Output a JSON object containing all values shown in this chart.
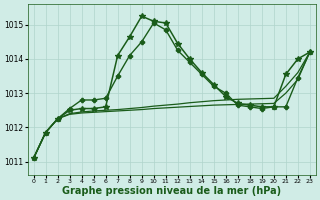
{
  "bg_color": "#d0ece6",
  "line_color": "#1a5c1a",
  "grid_color": "#b0d4cc",
  "xlabel": "Graphe pression niveau de la mer (hPa)",
  "xlabel_fontsize": 7,
  "ylabel_values": [
    1011,
    1012,
    1013,
    1014,
    1015
  ],
  "xlim": [
    -0.5,
    23.5
  ],
  "ylim": [
    1010.6,
    1015.6
  ],
  "xticks": [
    0,
    1,
    2,
    3,
    4,
    5,
    6,
    7,
    8,
    9,
    10,
    11,
    12,
    13,
    14,
    15,
    16,
    17,
    18,
    19,
    20,
    21,
    22,
    23
  ],
  "series": [
    {
      "x": [
        0,
        1,
        2,
        3,
        4,
        5,
        6,
        7,
        8,
        9,
        10,
        11,
        12,
        13,
        14,
        15,
        16,
        17,
        18,
        19,
        20,
        21,
        22,
        23
      ],
      "y": [
        1011.1,
        1011.85,
        1012.25,
        1012.5,
        1012.55,
        1012.55,
        1012.6,
        1014.1,
        1014.65,
        1015.25,
        1015.1,
        1015.05,
        1014.45,
        1014.0,
        1013.6,
        1013.25,
        1012.9,
        1012.7,
        1012.65,
        1012.6,
        1012.6,
        1013.55,
        1014.0,
        1014.2
      ],
      "marker": "*",
      "markersize": 4,
      "linewidth": 1.1,
      "linestyle": "-"
    },
    {
      "x": [
        0,
        1,
        2,
        3,
        4,
        5,
        6,
        7,
        8,
        9,
        10,
        11,
        12,
        13,
        14,
        15,
        16,
        17,
        18,
        19,
        20,
        21,
        22,
        23
      ],
      "y": [
        1011.1,
        1011.85,
        1012.25,
        1012.55,
        1012.8,
        1012.8,
        1012.85,
        1013.5,
        1014.1,
        1014.5,
        1015.05,
        1014.85,
        1014.25,
        1013.9,
        1013.55,
        1013.2,
        1013.0,
        1012.65,
        1012.6,
        1012.55,
        1012.6,
        1012.6,
        1013.45,
        1014.2
      ],
      "marker": "P",
      "markersize": 3,
      "linewidth": 1.0,
      "linestyle": "-"
    },
    {
      "x": [
        0,
        1,
        2,
        3,
        4,
        5,
        6,
        7,
        8,
        9,
        10,
        11,
        12,
        13,
        14,
        15,
        16,
        17,
        18,
        19,
        20,
        21,
        22,
        23
      ],
      "y": [
        1011.1,
        1011.85,
        1012.25,
        1012.4,
        1012.45,
        1012.48,
        1012.5,
        1012.52,
        1012.55,
        1012.58,
        1012.62,
        1012.65,
        1012.68,
        1012.72,
        1012.75,
        1012.78,
        1012.8,
        1012.82,
        1012.83,
        1012.84,
        1012.85,
        1013.2,
        1013.6,
        1014.2
      ],
      "marker": null,
      "markersize": 0,
      "linewidth": 0.9,
      "linestyle": "-"
    },
    {
      "x": [
        0,
        1,
        2,
        3,
        4,
        5,
        6,
        7,
        8,
        9,
        10,
        11,
        12,
        13,
        14,
        15,
        16,
        17,
        18,
        19,
        20,
        21,
        22,
        23
      ],
      "y": [
        1011.1,
        1011.85,
        1012.25,
        1012.38,
        1012.42,
        1012.44,
        1012.46,
        1012.48,
        1012.5,
        1012.52,
        1012.55,
        1012.57,
        1012.59,
        1012.61,
        1012.63,
        1012.65,
        1012.66,
        1012.67,
        1012.68,
        1012.69,
        1012.7,
        1013.0,
        1013.4,
        1014.2
      ],
      "marker": null,
      "markersize": 0,
      "linewidth": 0.9,
      "linestyle": "-"
    }
  ]
}
